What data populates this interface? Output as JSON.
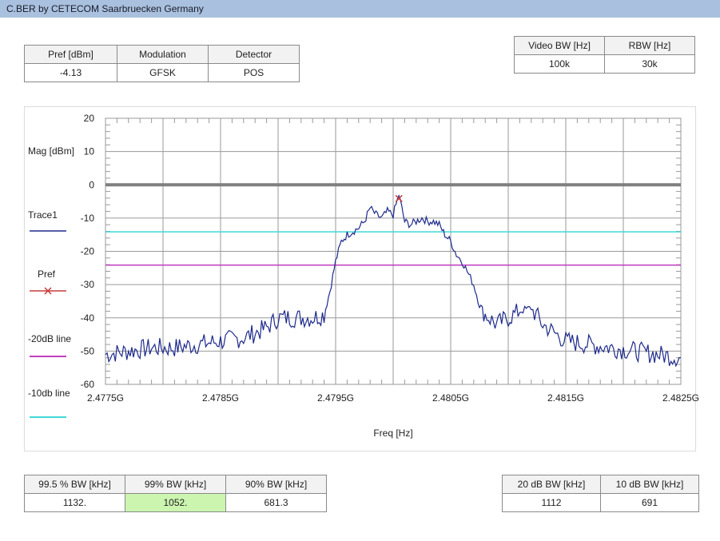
{
  "window": {
    "title": "C.BER by CETECOM Saarbruecken Germany"
  },
  "top_left_table": {
    "headers": [
      "Pref [dBm]",
      "Modulation",
      "Detector"
    ],
    "values": [
      "-4.13",
      "GFSK",
      "POS"
    ]
  },
  "top_right_table": {
    "headers": [
      "Video BW [Hz]",
      "RBW [Hz]"
    ],
    "values": [
      "100k",
      "30k"
    ]
  },
  "bottom_left_table": {
    "headers": [
      "99.5 % BW [kHz]",
      "99% BW [kHz]",
      "90% BW [kHz]"
    ],
    "values": [
      "1132.",
      "1052.",
      "681.3"
    ]
  },
  "bottom_right_table": {
    "headers": [
      "20 dB BW [kHz]",
      "10 dB BW [kHz]"
    ],
    "values": [
      "1112",
      "691"
    ]
  },
  "colors": {
    "titlebar": "#a9c1de",
    "highlight_cell": "#ccf5b0",
    "trace": "#1e2a8c",
    "pref_marker": "#c83c3c",
    "line_20db": "#c040c0",
    "line_10db": "#40d8d8",
    "zero_line": "#7f7f7f"
  },
  "chart_data": {
    "type": "line",
    "xlabel": "Freq [Hz]",
    "ylabel": "Mag [dBm]",
    "xlim": [
      2477500000.0,
      2482500000.0
    ],
    "ylim": [
      -60,
      20
    ],
    "x_tick_values": [
      2477500000.0,
      2478500000.0,
      2479500000.0,
      2480500000.0,
      2481500000.0,
      2482500000.0
    ],
    "x_tick_labels": [
      "2.4775G",
      "2.4785G",
      "2.4795G",
      "2.4805G",
      "2.4815G",
      "2.4825G"
    ],
    "y_tick_labels": [
      "20",
      "10",
      "0",
      "-10",
      "-20",
      "-30",
      "-40",
      "-50",
      "-60"
    ],
    "grid": true,
    "legend_position": "left",
    "legend": [
      "Trace1",
      "Pref",
      "-20dB line",
      "-10db line"
    ],
    "series": [
      {
        "name": "Trace1",
        "x": [
          2477500000.0,
          2477700000.0,
          2477900000.0,
          2478100000.0,
          2478300000.0,
          2478500000.0,
          2478700000.0,
          2478900000.0,
          2479000000.0,
          2479100000.0,
          2479200000.0,
          2479300000.0,
          2479400000.0,
          2479450000.0,
          2479500000.0,
          2479550000.0,
          2479600000.0,
          2479650000.0,
          2479700000.0,
          2479750000.0,
          2479800000.0,
          2479850000.0,
          2479900000.0,
          2479950000.0,
          2480000000.0,
          2480050000.0,
          2480100000.0,
          2480150000.0,
          2480200000.0,
          2480250000.0,
          2480300000.0,
          2480350000.0,
          2480400000.0,
          2480450000.0,
          2480500000.0,
          2480550000.0,
          2480600000.0,
          2480700000.0,
          2480750000.0,
          2480800000.0,
          2480900000.0,
          2481000000.0,
          2481100000.0,
          2481200000.0,
          2481300000.0,
          2481500000.0,
          2481700000.0,
          2481900000.0,
          2482100000.0,
          2482300000.0,
          2482500000.0
        ],
        "y": [
          -51,
          -50,
          -49,
          -49,
          -48,
          -47,
          -46,
          -43,
          -40,
          -40,
          -40,
          -40,
          -39,
          -32,
          -23,
          -17,
          -15,
          -14,
          -13,
          -11,
          -7,
          -9,
          -10,
          -8,
          -9,
          -3,
          -11,
          -12,
          -11,
          -10,
          -11,
          -11,
          -12,
          -15,
          -17,
          -21,
          -23,
          -30,
          -36,
          -39,
          -42,
          -40,
          -38,
          -37,
          -42,
          -47,
          -48,
          -49,
          -50,
          -51,
          -52
        ]
      }
    ],
    "pref": {
      "name": "Pref",
      "x": 2480050000.0,
      "y": -4.13
    },
    "hlines": [
      {
        "name": "0 dBm",
        "y": 0
      },
      {
        "name": "-10db line",
        "y": -14.13
      },
      {
        "name": "-20dB line",
        "y": -24.13
      }
    ]
  }
}
